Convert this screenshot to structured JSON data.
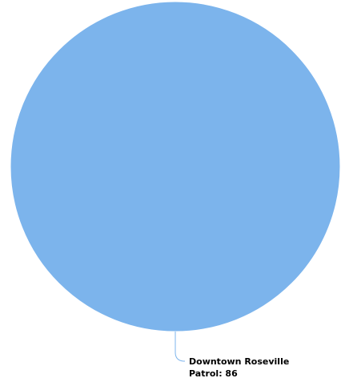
{
  "chart_data": {
    "type": "pie",
    "title": "",
    "slices": [
      {
        "label": "Downtown Roseville",
        "value": 86,
        "color": "#7cb4ec",
        "data_label_line1": "Downtown Roseville",
        "data_label_line2": "Patrol: 86"
      }
    ],
    "legend": false,
    "connector_color": "#7cb4ec"
  }
}
